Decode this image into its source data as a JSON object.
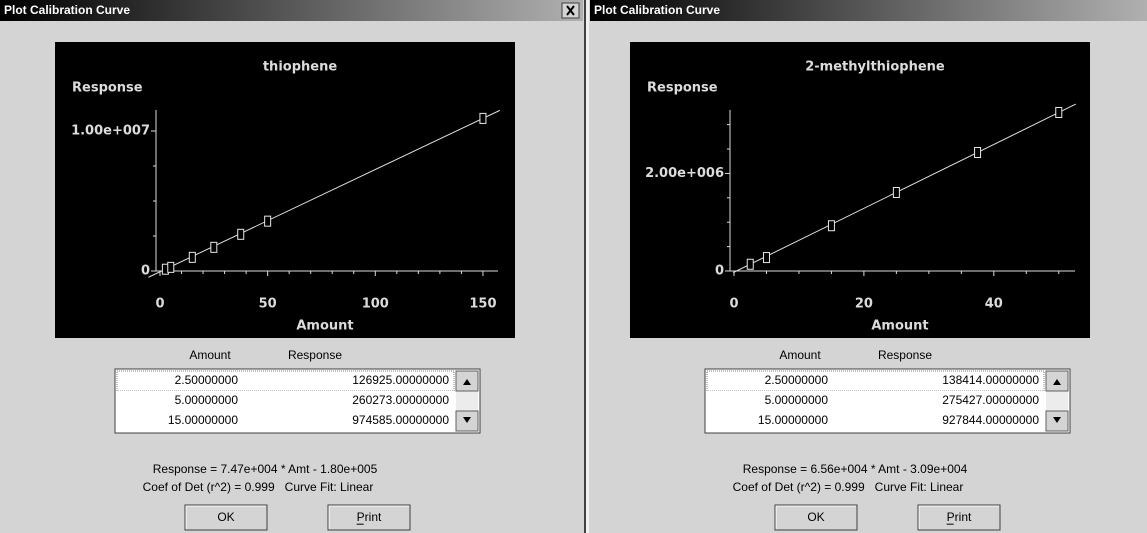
{
  "dialogs": [
    {
      "title": "Plot Calibration Curve",
      "chart": {
        "type": "scatter",
        "title": "thiophene",
        "y_label": "Response",
        "x_label": "Amount",
        "x": [
          2.5,
          5,
          15,
          25,
          37.5,
          50,
          150
        ],
        "values": [
          126925,
          260273,
          974585,
          1690000,
          2620000,
          3560000,
          10900000
        ],
        "xlim": [
          0,
          157
        ],
        "ylim": [
          0,
          11500000
        ],
        "xticks": [
          0,
          50,
          100,
          150
        ],
        "minor_xticks": [
          10,
          20,
          30,
          40,
          60,
          70,
          80,
          90,
          110,
          120,
          130,
          140
        ],
        "yticks": [
          0,
          {
            "value": 10000000,
            "label": "1.00e+007"
          }
        ],
        "minor_yticks": [
          2500000,
          5000000,
          7500000
        ]
      },
      "table": {
        "columns": [
          "Amount",
          "Response"
        ],
        "rows": [
          [
            "2.50000000",
            "126925.00000000"
          ],
          [
            "5.00000000",
            "260273.00000000"
          ],
          [
            "15.00000000",
            "974585.00000000"
          ]
        ]
      },
      "equation": "Response = 7.47e+004 * Amt - 1.80e+005",
      "fit_info": "Coef of Det (r^2) = 0.999   Curve Fit: Linear",
      "buttons": [
        "OK",
        "Print"
      ]
    },
    {
      "title": "Plot Calibration Curve",
      "chart": {
        "type": "scatter",
        "title": "2-methylthiophene",
        "y_label": "Response",
        "x_label": "Amount",
        "x": [
          2.5,
          5,
          15,
          25,
          37.5,
          50
        ],
        "values": [
          138414,
          275427,
          927844,
          1609000,
          2429000,
          3249000
        ],
        "xlim": [
          0,
          52.5
        ],
        "ylim": [
          0,
          3300000
        ],
        "xticks": [
          0,
          20,
          40
        ],
        "minor_xticks": [
          5,
          10,
          15,
          25,
          30,
          35,
          45,
          50
        ],
        "yticks": [
          0,
          {
            "value": 2000000,
            "label": "2.00e+006"
          }
        ],
        "minor_yticks": [
          500000,
          1000000,
          1500000,
          2500000,
          3000000
        ]
      },
      "table": {
        "columns": [
          "Amount",
          "Response"
        ],
        "rows": [
          [
            "2.50000000",
            "138414.00000000"
          ],
          [
            "5.00000000",
            "275427.00000000"
          ],
          [
            "15.00000000",
            "927844.00000000"
          ]
        ]
      },
      "equation": "Response = 6.56e+004 * Amt - 3.09e+004",
      "fit_info": "Coef of Det (r^2) = 0.999   Curve Fit: Linear",
      "buttons": [
        "OK",
        "Print"
      ]
    }
  ]
}
